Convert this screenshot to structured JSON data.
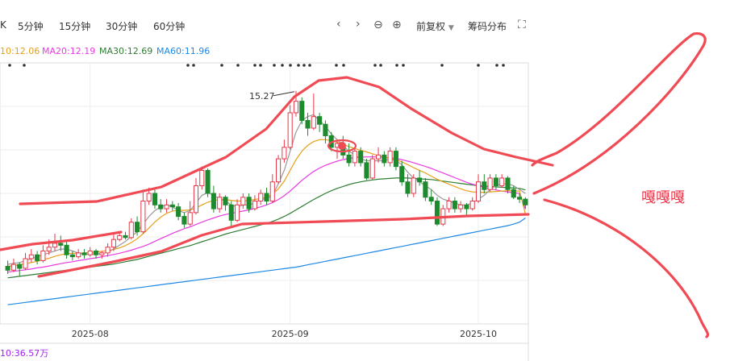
{
  "toolbar": {
    "k_label": "K",
    "period_5": "5分钟",
    "period_15": "15分钟",
    "period_30": "30分钟",
    "period_60": "60分钟",
    "adjust_label": "前复权",
    "chip_label": "筹码分布"
  },
  "legend": {
    "ma10": "10:12.06",
    "ma20": "MA20:12.19",
    "ma30": "MA30:12.69",
    "ma60": "MA60:11.96"
  },
  "colors": {
    "up": "#e8374a",
    "down": "#1e8a2e",
    "ma5": "#999999",
    "ma10": "#e6a11a",
    "ma20": "#e83ce0",
    "ma30": "#2e7d32",
    "ma60": "#1e88e5",
    "annotation": "#f04b55"
  },
  "volume_label": "10:36.57万",
  "annotation_text": "嘎嘎嘎",
  "chart_data": {
    "type": "candlestick",
    "x_ticks": [
      "2025-08",
      "2025-09",
      "2025-10"
    ],
    "max_label": "15.27",
    "ylim": [
      9.2,
      16.0
    ],
    "candles": [
      [
        10.7,
        10.6,
        10.85,
        10.5
      ],
      [
        10.6,
        10.75,
        10.9,
        10.55
      ],
      [
        10.75,
        10.65,
        10.8,
        10.45
      ],
      [
        10.65,
        10.9,
        11.05,
        10.6
      ],
      [
        10.9,
        11.0,
        11.15,
        10.8
      ],
      [
        11.0,
        10.85,
        11.1,
        10.75
      ],
      [
        10.85,
        11.1,
        11.25,
        10.8
      ],
      [
        11.1,
        11.2,
        11.4,
        11.0
      ],
      [
        11.2,
        11.3,
        11.55,
        11.1
      ],
      [
        11.3,
        11.25,
        11.5,
        11.1
      ],
      [
        11.25,
        11.0,
        11.35,
        10.9
      ],
      [
        11.0,
        10.95,
        11.1,
        10.85
      ],
      [
        10.95,
        11.05,
        11.15,
        10.9
      ],
      [
        11.05,
        11.0,
        11.15,
        10.9
      ],
      [
        11.0,
        11.1,
        11.2,
        10.95
      ],
      [
        11.1,
        11.0,
        11.15,
        10.9
      ],
      [
        11.0,
        11.05,
        11.1,
        10.9
      ],
      [
        11.05,
        11.2,
        11.3,
        10.95
      ],
      [
        11.2,
        11.4,
        11.55,
        11.1
      ],
      [
        11.4,
        11.5,
        11.6,
        11.35
      ],
      [
        11.5,
        11.45,
        11.6,
        11.4
      ],
      [
        11.45,
        11.85,
        11.95,
        11.4
      ],
      [
        11.85,
        11.6,
        12.0,
        11.5
      ],
      [
        11.6,
        12.4,
        12.7,
        11.55
      ],
      [
        12.4,
        12.6,
        12.75,
        12.3
      ],
      [
        12.6,
        12.3,
        12.7,
        12.2
      ],
      [
        12.3,
        12.2,
        12.45,
        12.1
      ],
      [
        12.2,
        12.3,
        12.45,
        12.1
      ],
      [
        12.3,
        12.25,
        12.4,
        12.15
      ],
      [
        12.25,
        12.0,
        12.35,
        11.9
      ],
      [
        12.0,
        11.8,
        12.1,
        11.7
      ],
      [
        11.8,
        12.1,
        12.4,
        11.75
      ],
      [
        12.1,
        12.8,
        13.0,
        12.05
      ],
      [
        12.8,
        13.2,
        13.3,
        12.7
      ],
      [
        13.2,
        12.6,
        13.25,
        12.5
      ],
      [
        12.6,
        12.2,
        12.8,
        12.1
      ],
      [
        12.2,
        12.5,
        12.6,
        12.1
      ],
      [
        12.5,
        12.3,
        12.55,
        12.15
      ],
      [
        12.3,
        11.9,
        12.4,
        11.7
      ],
      [
        11.9,
        12.3,
        12.45,
        11.85
      ],
      [
        12.3,
        12.5,
        12.6,
        12.2
      ],
      [
        12.5,
        12.2,
        12.6,
        12.1
      ],
      [
        12.2,
        12.4,
        12.55,
        12.15
      ],
      [
        12.4,
        12.6,
        12.7,
        12.3
      ],
      [
        12.6,
        12.4,
        12.75,
        12.3
      ],
      [
        12.4,
        12.9,
        13.1,
        12.35
      ],
      [
        12.9,
        13.5,
        13.6,
        12.85
      ],
      [
        13.5,
        13.8,
        14.0,
        13.4
      ],
      [
        13.8,
        14.7,
        14.9,
        13.75
      ],
      [
        14.7,
        15.0,
        15.27,
        14.6
      ],
      [
        15.0,
        14.5,
        15.1,
        14.4
      ],
      [
        14.5,
        14.3,
        14.7,
        14.1
      ],
      [
        14.3,
        14.6,
        15.2,
        14.25
      ],
      [
        14.6,
        14.4,
        14.7,
        14.2
      ],
      [
        14.4,
        14.1,
        14.5,
        13.9
      ],
      [
        14.1,
        13.8,
        14.2,
        13.7
      ],
      [
        13.8,
        13.9,
        14.0,
        13.5
      ],
      [
        13.9,
        13.6,
        14.1,
        13.5
      ],
      [
        13.6,
        13.4,
        13.9,
        13.3
      ],
      [
        13.4,
        13.7,
        13.8,
        13.3
      ],
      [
        13.7,
        13.4,
        13.8,
        13.3
      ],
      [
        13.4,
        13.0,
        13.5,
        12.95
      ],
      [
        13.0,
        13.5,
        13.6,
        12.95
      ],
      [
        13.5,
        13.6,
        13.8,
        13.4
      ],
      [
        13.6,
        13.4,
        13.7,
        13.3
      ],
      [
        13.4,
        13.7,
        13.8,
        13.3
      ],
      [
        13.7,
        13.3,
        13.8,
        13.2
      ],
      [
        13.3,
        12.9,
        13.45,
        12.8
      ],
      [
        12.9,
        12.6,
        13.1,
        12.5
      ],
      [
        12.6,
        13.0,
        13.1,
        12.5
      ],
      [
        13.0,
        12.9,
        13.2,
        12.8
      ],
      [
        12.9,
        12.5,
        13.0,
        12.4
      ],
      [
        12.5,
        12.4,
        12.7,
        12.3
      ],
      [
        12.4,
        11.8,
        12.5,
        11.75
      ],
      [
        11.8,
        12.2,
        12.3,
        11.75
      ],
      [
        12.2,
        12.4,
        12.5,
        12.1
      ],
      [
        12.4,
        12.2,
        12.5,
        12.1
      ],
      [
        12.2,
        12.3,
        12.4,
        12.1
      ],
      [
        12.3,
        12.2,
        12.35,
        12.0
      ],
      [
        12.2,
        12.4,
        12.5,
        12.15
      ],
      [
        12.4,
        12.9,
        13.1,
        12.35
      ],
      [
        12.9,
        12.7,
        13.1,
        12.6
      ],
      [
        12.7,
        13.0,
        13.1,
        12.65
      ],
      [
        13.0,
        12.8,
        13.1,
        12.7
      ],
      [
        12.8,
        13.0,
        13.1,
        12.75
      ],
      [
        13.0,
        12.7,
        13.05,
        12.6
      ],
      [
        12.7,
        12.5,
        12.8,
        12.45
      ],
      [
        12.5,
        12.45,
        12.6,
        12.35
      ],
      [
        12.45,
        12.3,
        12.5,
        12.2
      ]
    ],
    "ma5": [
      10.75,
      10.78,
      10.8,
      10.85,
      10.9,
      10.95,
      11.0,
      11.05,
      11.1,
      11.15,
      11.15,
      11.1,
      11.05,
      11.02,
      11.02,
      11.02,
      11.03,
      11.07,
      11.15,
      11.25,
      11.35,
      11.48,
      11.6,
      11.8,
      12.0,
      12.15,
      12.25,
      12.3,
      12.25,
      12.15,
      12.1,
      12.15,
      12.35,
      12.55,
      12.62,
      12.55,
      12.45,
      12.4,
      12.3,
      12.25,
      12.3,
      12.3,
      12.35,
      12.45,
      12.45,
      12.55,
      12.85,
      13.2,
      13.7,
      14.2,
      14.5,
      14.6,
      14.65,
      14.5,
      14.35,
      14.15,
      14.0,
      13.85,
      13.7,
      13.6,
      13.5,
      13.45,
      13.45,
      13.45,
      13.45,
      13.5,
      13.45,
      13.35,
      13.15,
      13.0,
      12.9,
      12.8,
      12.7,
      12.55,
      12.45,
      12.4,
      12.35,
      12.3,
      12.3,
      12.35,
      12.45,
      12.55,
      12.7,
      12.8,
      12.85,
      12.85,
      12.8,
      12.7,
      12.6
    ],
    "ma10": [
      10.7,
      10.72,
      10.74,
      10.77,
      10.8,
      10.83,
      10.87,
      10.91,
      10.96,
      11.0,
      11.03,
      11.04,
      11.04,
      11.05,
      11.06,
      11.07,
      11.09,
      11.11,
      11.14,
      11.18,
      11.24,
      11.32,
      11.42,
      11.55,
      11.7,
      11.85,
      11.98,
      12.08,
      12.14,
      12.16,
      12.16,
      12.17,
      12.22,
      12.3,
      12.37,
      12.42,
      12.44,
      12.44,
      12.42,
      12.4,
      12.4,
      12.42,
      12.44,
      12.47,
      12.5,
      12.58,
      12.72,
      12.92,
      13.2,
      13.48,
      13.7,
      13.85,
      13.95,
      14.0,
      14.0,
      13.97,
      13.93,
      13.88,
      13.82,
      13.77,
      13.72,
      13.68,
      13.63,
      13.58,
      13.54,
      13.52,
      13.48,
      13.42,
      13.35,
      13.27,
      13.2,
      13.13,
      13.05,
      12.97,
      12.9,
      12.84,
      12.78,
      12.72,
      12.67,
      12.64,
      12.63,
      12.63,
      12.64,
      12.65,
      12.66,
      12.67,
      12.67,
      12.66,
      12.06
    ],
    "ma20": [
      10.55,
      10.57,
      10.59,
      10.61,
      10.63,
      10.66,
      10.68,
      10.71,
      10.74,
      10.77,
      10.8,
      10.82,
      10.85,
      10.87,
      10.9,
      10.92,
      10.95,
      10.98,
      11.01,
      11.04,
      11.08,
      11.12,
      11.17,
      11.22,
      11.28,
      11.35,
      11.42,
      11.49,
      11.56,
      11.62,
      11.68,
      11.73,
      11.79,
      11.85,
      11.91,
      11.96,
      12.01,
      12.05,
      12.08,
      12.11,
      12.14,
      12.17,
      12.21,
      12.25,
      12.3,
      12.36,
      12.44,
      12.54,
      12.66,
      12.8,
      12.94,
      13.06,
      13.17,
      13.26,
      13.33,
      13.39,
      13.44,
      13.48,
      13.51,
      13.53,
      13.54,
      13.55,
      13.55,
      13.55,
      13.54,
      13.53,
      13.51,
      13.48,
      13.44,
      13.4,
      13.35,
      13.3,
      13.25,
      13.19,
      13.13,
      13.07,
      13.01,
      12.95,
      12.89,
      12.84,
      12.8,
      12.76,
      12.72,
      12.69,
      12.66,
      12.64,
      12.62,
      12.6,
      12.19
    ],
    "ma30": [
      10.4,
      10.42,
      10.44,
      10.46,
      10.48,
      10.5,
      10.52,
      10.54,
      10.56,
      10.58,
      10.6,
      10.62,
      10.64,
      10.66,
      10.68,
      10.7,
      10.72,
      10.74,
      10.76,
      10.79,
      10.82,
      10.85,
      10.88,
      10.92,
      10.96,
      11.0,
      11.04,
      11.08,
      11.12,
      11.16,
      11.2,
      11.24,
      11.29,
      11.34,
      11.39,
      11.44,
      11.49,
      11.54,
      11.58,
      11.62,
      11.66,
      11.7,
      11.74,
      11.78,
      11.82,
      11.87,
      11.93,
      12.0,
      12.08,
      12.17,
      12.26,
      12.35,
      12.44,
      12.52,
      12.6,
      12.67,
      12.73,
      12.78,
      12.83,
      12.87,
      12.9,
      12.93,
      12.95,
      12.97,
      12.98,
      12.99,
      13.0,
      13.0,
      13.0,
      12.99,
      12.98,
      12.97,
      12.96,
      12.94,
      12.92,
      12.9,
      12.88,
      12.86,
      12.84,
      12.82,
      12.8,
      12.79,
      12.78,
      12.77,
      12.76,
      12.75,
      12.74,
      12.73,
      12.69
    ],
    "ma60": [
      9.7,
      9.72,
      9.74,
      9.76,
      9.78,
      9.8,
      9.82,
      9.84,
      9.86,
      9.88,
      9.9,
      9.92,
      9.94,
      9.96,
      9.98,
      10.0,
      10.02,
      10.04,
      10.06,
      10.08,
      10.1,
      10.12,
      10.14,
      10.16,
      10.18,
      10.2,
      10.22,
      10.24,
      10.26,
      10.28,
      10.3,
      10.32,
      10.34,
      10.36,
      10.38,
      10.4,
      10.42,
      10.44,
      10.46,
      10.48,
      10.5,
      10.52,
      10.54,
      10.56,
      10.58,
      10.6,
      10.62,
      10.64,
      10.66,
      10.68,
      10.71,
      10.74,
      10.77,
      10.8,
      10.83,
      10.86,
      10.89,
      10.92,
      10.95,
      10.98,
      11.01,
      11.04,
      11.07,
      11.1,
      11.13,
      11.16,
      11.19,
      11.22,
      11.25,
      11.28,
      11.31,
      11.34,
      11.37,
      11.4,
      11.43,
      11.46,
      11.49,
      11.52,
      11.55,
      11.58,
      11.61,
      11.64,
      11.67,
      11.7,
      11.73,
      11.76,
      11.8,
      11.85,
      11.96
    ]
  }
}
